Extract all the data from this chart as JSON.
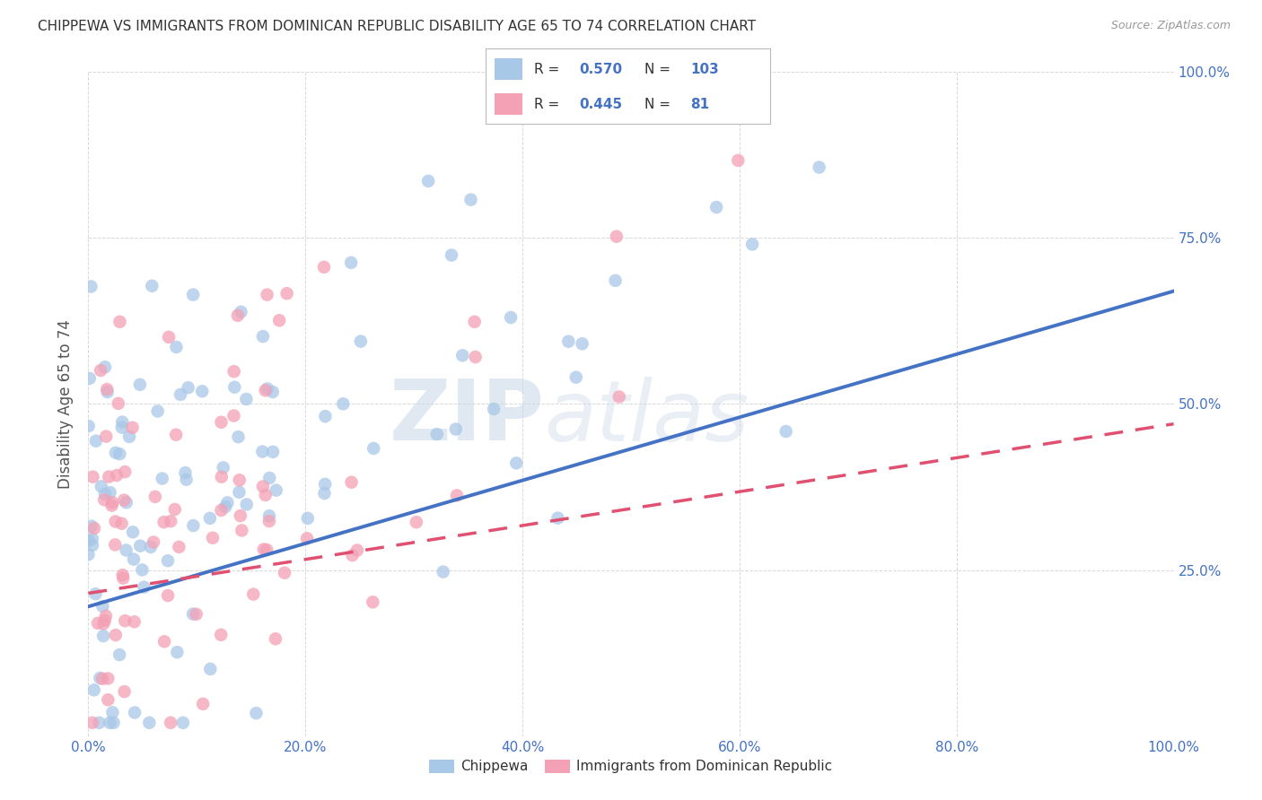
{
  "title": "CHIPPEWA VS IMMIGRANTS FROM DOMINICAN REPUBLIC DISABILITY AGE 65 TO 74 CORRELATION CHART",
  "source": "Source: ZipAtlas.com",
  "ylabel": "Disability Age 65 to 74",
  "color_blue": "#a8c8e8",
  "color_pink": "#f4a0b5",
  "line_blue": "#4472c4",
  "line_pink": "#e05070",
  "legend_r_blue": "0.570",
  "legend_n_blue": "103",
  "legend_r_pink": "0.445",
  "legend_n_pink": "81",
  "legend_label_blue": "Chippewa",
  "legend_label_pink": "Immigrants from Dominican Republic",
  "watermark_zip": "ZIP",
  "watermark_atlas": "atlas",
  "background_color": "#ffffff",
  "grid_color": "#d8d8d8",
  "title_color": "#333333",
  "axis_label_color": "#555555",
  "tick_color": "#4472c4",
  "blue_line_intercept": 0.195,
  "blue_line_slope": 0.475,
  "pink_line_intercept": 0.215,
  "pink_line_slope": 0.255
}
